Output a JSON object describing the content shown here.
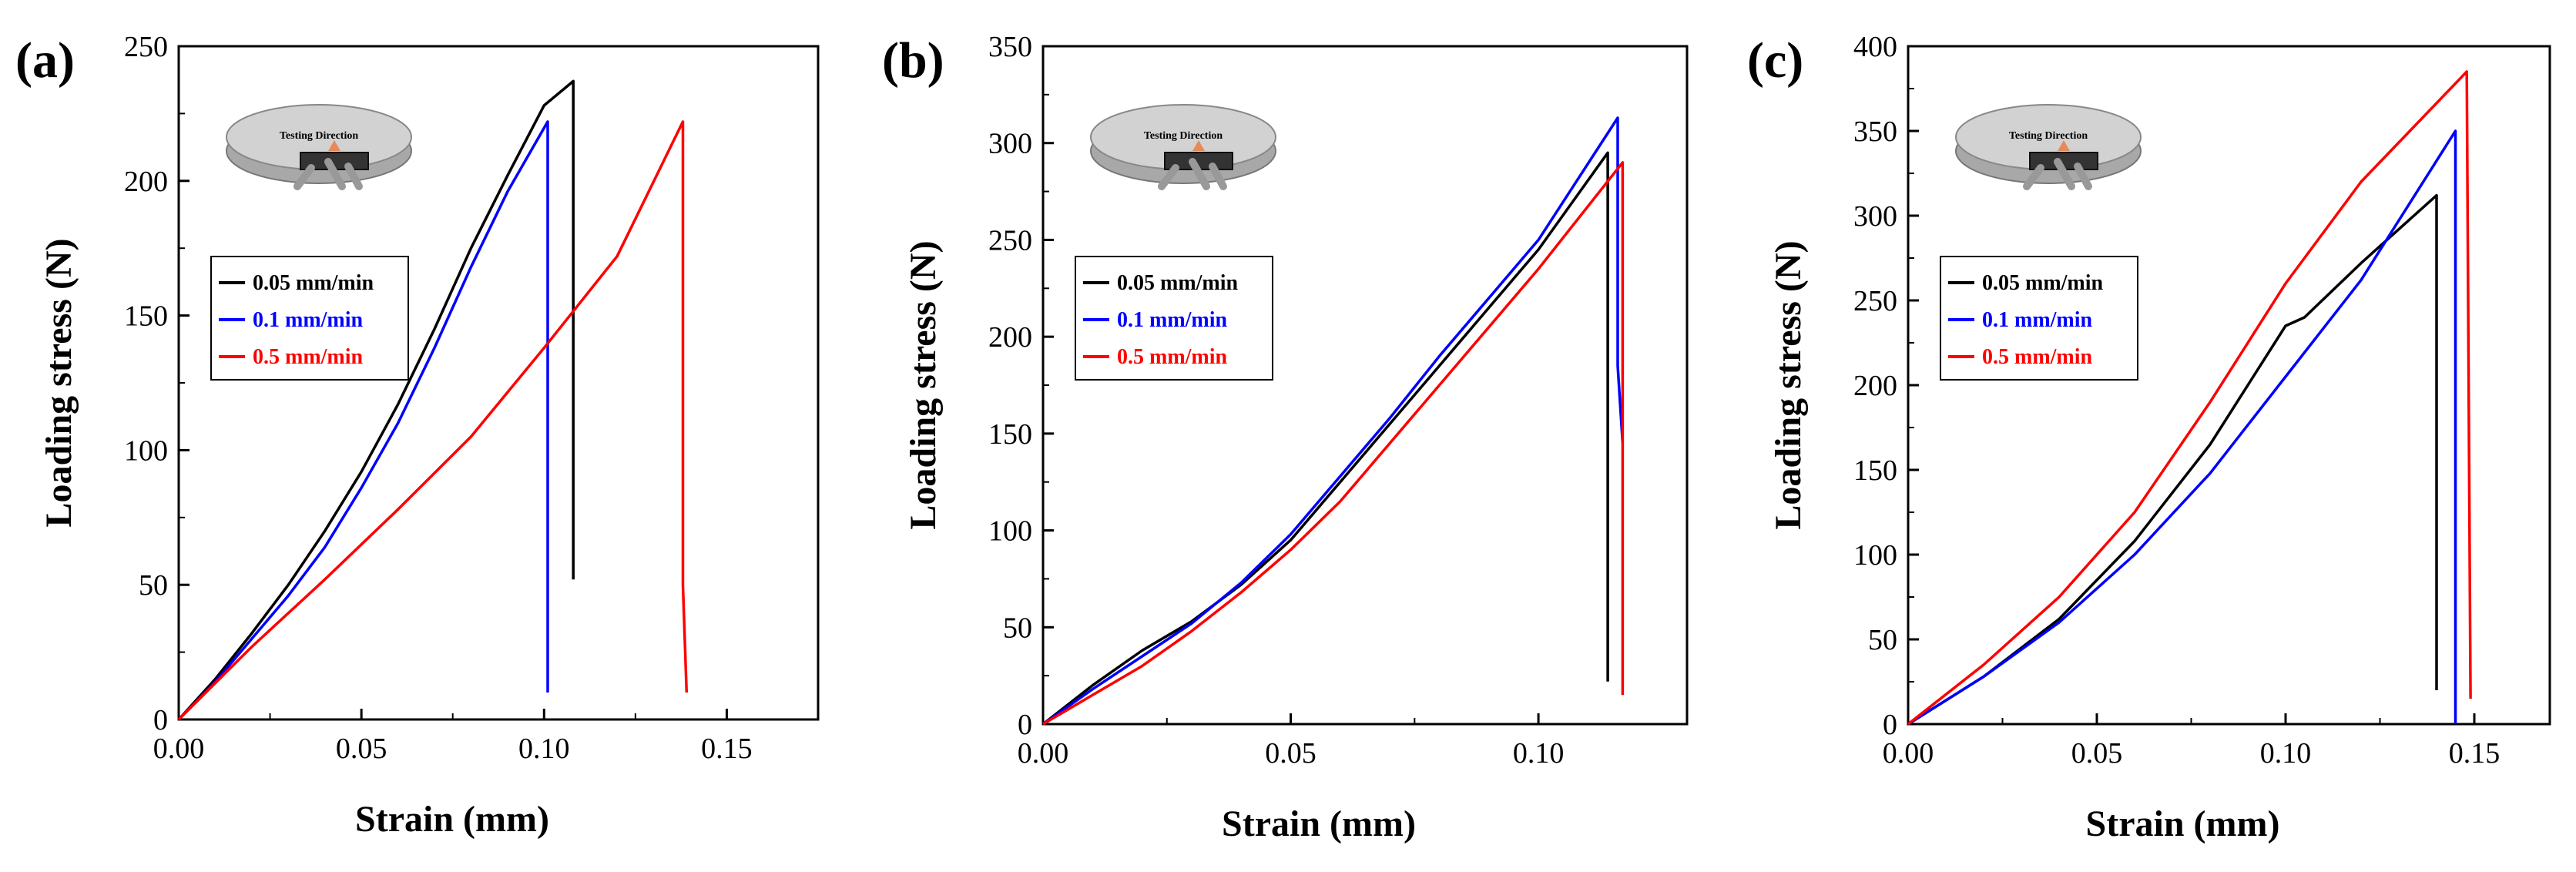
{
  "chart_data": [
    {
      "type": "line",
      "panel_label": "(a)",
      "xlabel": "Strain (mm)",
      "ylabel": "Loading stress (N)",
      "xlim": [
        0,
        0.175
      ],
      "ylim": [
        0,
        250
      ],
      "xticks": [
        0.0,
        0.05,
        0.1,
        0.15
      ],
      "xtick_labels": [
        "0.00",
        "0.05",
        "0.10",
        "0.15"
      ],
      "yticks": [
        0,
        50,
        100,
        150,
        200,
        250
      ],
      "ytick_labels": [
        "0",
        "50",
        "100",
        "150",
        "200",
        "250"
      ],
      "inset_label": "Testing Direction",
      "legend_position": "center-left",
      "series": [
        {
          "name": "0.05 mm/min",
          "color": "#000000",
          "x": [
            0,
            0.01,
            0.02,
            0.03,
            0.04,
            0.05,
            0.06,
            0.07,
            0.08,
            0.09,
            0.1,
            0.108,
            0.108
          ],
          "y": [
            0,
            15,
            32,
            50,
            70,
            92,
            117,
            145,
            175,
            202,
            228,
            237,
            52
          ]
        },
        {
          "name": "0.1 mm/min",
          "color": "#0000ff",
          "x": [
            0,
            0.01,
            0.02,
            0.03,
            0.04,
            0.05,
            0.06,
            0.07,
            0.08,
            0.09,
            0.101,
            0.101
          ],
          "y": [
            0,
            14,
            30,
            46,
            64,
            86,
            110,
            138,
            168,
            196,
            222,
            10
          ]
        },
        {
          "name": "0.5 mm/min",
          "color": "#ff0000",
          "x": [
            0,
            0.02,
            0.04,
            0.06,
            0.08,
            0.1,
            0.12,
            0.138,
            0.138,
            0.139
          ],
          "y": [
            0,
            27,
            52,
            78,
            105,
            138,
            172,
            222,
            50,
            10
          ]
        }
      ]
    },
    {
      "type": "line",
      "panel_label": "(b)",
      "xlabel": "Strain (mm)",
      "ylabel": "Loading stress (N)",
      "xlim": [
        0,
        0.13
      ],
      "ylim": [
        0,
        350
      ],
      "xticks": [
        0.0,
        0.05,
        0.1
      ],
      "xtick_labels": [
        "0.00",
        "0.05",
        "0.10"
      ],
      "yticks": [
        0,
        50,
        100,
        150,
        200,
        250,
        300,
        350
      ],
      "ytick_labels": [
        "0",
        "50",
        "100",
        "150",
        "200",
        "250",
        "300",
        "350"
      ],
      "inset_label": "Testing Direction",
      "legend_position": "center-left",
      "series": [
        {
          "name": "0.05 mm/min",
          "color": "#000000",
          "x": [
            0,
            0.01,
            0.02,
            0.03,
            0.04,
            0.05,
            0.06,
            0.07,
            0.08,
            0.09,
            0.1,
            0.114,
            0.114
          ],
          "y": [
            0,
            20,
            38,
            53,
            72,
            95,
            125,
            155,
            185,
            215,
            245,
            295,
            22
          ]
        },
        {
          "name": "0.1 mm/min",
          "color": "#0000ff",
          "x": [
            0,
            0.01,
            0.02,
            0.03,
            0.04,
            0.05,
            0.06,
            0.07,
            0.08,
            0.09,
            0.1,
            0.116,
            0.116,
            0.117
          ],
          "y": [
            0,
            18,
            35,
            52,
            73,
            98,
            128,
            158,
            190,
            220,
            250,
            313,
            185,
            145
          ]
        },
        {
          "name": "0.5 mm/min",
          "color": "#ff0000",
          "x": [
            0,
            0.01,
            0.02,
            0.03,
            0.04,
            0.05,
            0.06,
            0.07,
            0.08,
            0.09,
            0.1,
            0.117,
            0.117
          ],
          "y": [
            0,
            15,
            30,
            48,
            68,
            90,
            115,
            145,
            175,
            205,
            235,
            290,
            15
          ]
        }
      ]
    },
    {
      "type": "line",
      "panel_label": "(c)",
      "xlabel": "Strain (mm)",
      "ylabel": "Loading stress (N)",
      "xlim": [
        0,
        0.17
      ],
      "ylim": [
        0,
        400
      ],
      "xticks": [
        0.0,
        0.05,
        0.1,
        0.15
      ],
      "xtick_labels": [
        "0.00",
        "0.05",
        "0.10",
        "0.15"
      ],
      "yticks": [
        0,
        50,
        100,
        150,
        200,
        250,
        300,
        350,
        400
      ],
      "ytick_labels": [
        "0",
        "50",
        "100",
        "150",
        "200",
        "250",
        "300",
        "350",
        "400"
      ],
      "inset_label": "Testing Direction",
      "legend_position": "center-left",
      "series": [
        {
          "name": "0.05 mm/min",
          "color": "#000000",
          "x": [
            0,
            0.02,
            0.04,
            0.06,
            0.08,
            0.1,
            0.105,
            0.12,
            0.14,
            0.14
          ],
          "y": [
            0,
            28,
            62,
            108,
            165,
            235,
            240,
            272,
            312,
            20
          ]
        },
        {
          "name": "0.1 mm/min",
          "color": "#0000ff",
          "x": [
            0,
            0.02,
            0.04,
            0.06,
            0.08,
            0.1,
            0.12,
            0.145,
            0.145
          ],
          "y": [
            0,
            28,
            60,
            100,
            148,
            205,
            262,
            350,
            0
          ]
        },
        {
          "name": "0.5 mm/min",
          "color": "#ff0000",
          "x": [
            0,
            0.02,
            0.04,
            0.06,
            0.08,
            0.1,
            0.12,
            0.148,
            0.149
          ],
          "y": [
            0,
            35,
            75,
            125,
            190,
            260,
            320,
            385,
            15
          ]
        }
      ]
    }
  ]
}
